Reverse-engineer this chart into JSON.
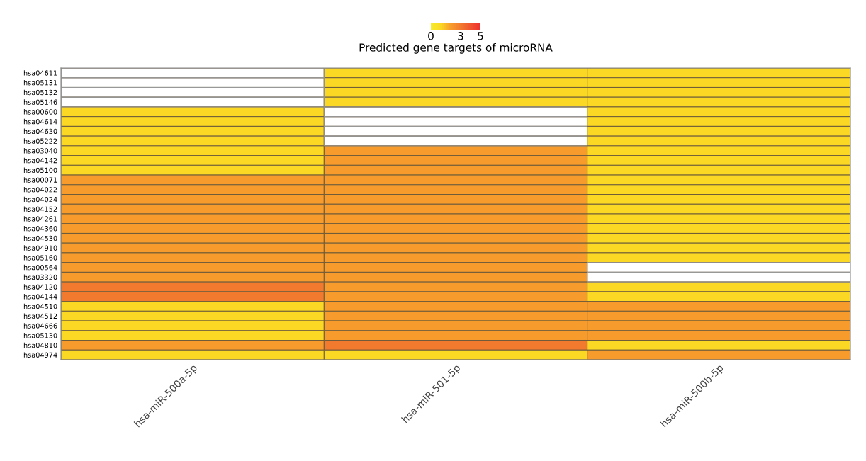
{
  "chart_data": {
    "type": "heatmap",
    "clabel": "Predicted gene targets of microRNA",
    "clim": [
      0,
      5
    ],
    "cticks": [
      0,
      3,
      5
    ],
    "categories": [
      "hsa-miR-500a-5p",
      "hsa-miR-501-5p",
      "hsa-miR-500b-5p"
    ],
    "y_categories": [
      "hsa04611",
      "hsa05131",
      "hsa05132",
      "hsa05146",
      "hsa00600",
      "hsa04614",
      "hsa04630",
      "hsa05222",
      "hsa03040",
      "hsa04142",
      "hsa05100",
      "hsa00071",
      "hsa04022",
      "hsa04024",
      "hsa04152",
      "hsa04261",
      "hsa04360",
      "hsa04530",
      "hsa04910",
      "hsa05160",
      "hsa00564",
      "hsa03320",
      "hsa04120",
      "hsa04144",
      "hsa04510",
      "hsa04512",
      "hsa04666",
      "hsa05130",
      "hsa04810",
      "hsa04974"
    ],
    "cells": [
      [
        null,
        1,
        1
      ],
      [
        null,
        1,
        1
      ],
      [
        null,
        1,
        1
      ],
      [
        null,
        1,
        1
      ],
      [
        1,
        null,
        1
      ],
      [
        1,
        null,
        1
      ],
      [
        1,
        null,
        1
      ],
      [
        1,
        null,
        1
      ],
      [
        1,
        2,
        1
      ],
      [
        1,
        2,
        1
      ],
      [
        1,
        2,
        1
      ],
      [
        2,
        2,
        1
      ],
      [
        2,
        2,
        1
      ],
      [
        2,
        2,
        1
      ],
      [
        2,
        2,
        1
      ],
      [
        2,
        2,
        1
      ],
      [
        2,
        2,
        1
      ],
      [
        2,
        2,
        1
      ],
      [
        2,
        2,
        1
      ],
      [
        2,
        2,
        1
      ],
      [
        2,
        2,
        null
      ],
      [
        2,
        2,
        null
      ],
      [
        3,
        2,
        1
      ],
      [
        3,
        2,
        1
      ],
      [
        1,
        2,
        2
      ],
      [
        1,
        2,
        2
      ],
      [
        1,
        2,
        2
      ],
      [
        1,
        2,
        2
      ],
      [
        2,
        3,
        1
      ],
      [
        1,
        1,
        2
      ]
    ]
  }
}
